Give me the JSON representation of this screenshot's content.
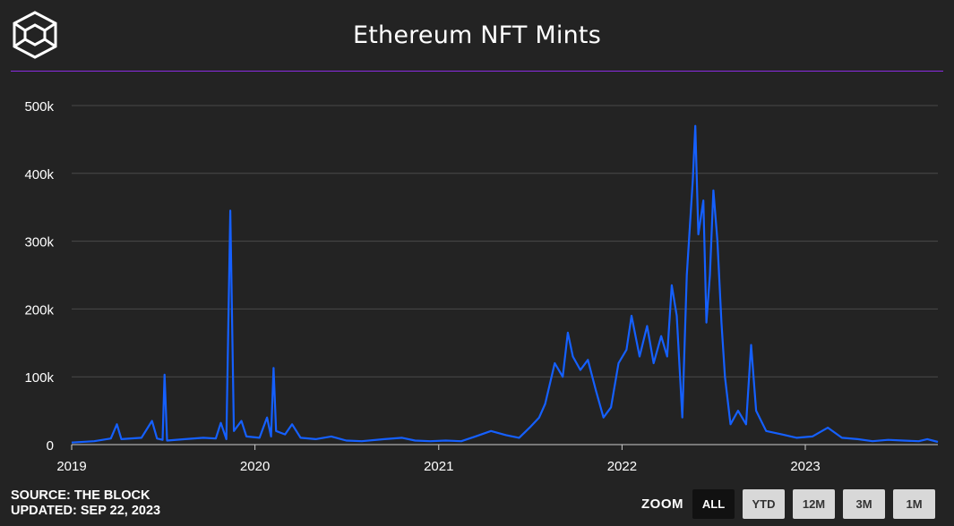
{
  "header": {
    "title": "Ethereum NFT Mints"
  },
  "footer": {
    "source": "SOURCE: THE BLOCK",
    "updated": "UPDATED: SEP 22, 2023"
  },
  "zoom": {
    "label": "ZOOM",
    "buttons": [
      "ALL",
      "YTD",
      "12M",
      "3M",
      "1M"
    ],
    "active": "ALL"
  },
  "colors": {
    "line": "#1560ff",
    "background": "#232323",
    "rule": "#8a2be2",
    "grid": "#4a4a4a"
  },
  "chart_data": {
    "type": "line",
    "title": "Ethereum NFT Mints",
    "xlabel": "",
    "ylabel": "",
    "xlim": [
      "2019-01-01",
      "2023-09-22"
    ],
    "ylim": [
      0,
      500000
    ],
    "x_ticks": [
      "2019",
      "2020",
      "2021",
      "2022",
      "2023"
    ],
    "y_ticks": [
      "0",
      "100k",
      "200k",
      "300k",
      "400k",
      "500k"
    ],
    "grid": true,
    "legend": "none",
    "series": [
      {
        "points": [
          [
            "2019-01-01",
            3000
          ],
          [
            "2019-02-15",
            5000
          ],
          [
            "2019-03-20",
            9000
          ],
          [
            "2019-04-01",
            30000
          ],
          [
            "2019-04-10",
            8000
          ],
          [
            "2019-05-20",
            10000
          ],
          [
            "2019-06-10",
            35000
          ],
          [
            "2019-06-20",
            9000
          ],
          [
            "2019-07-01",
            7000
          ],
          [
            "2019-07-05",
            103000
          ],
          [
            "2019-07-10",
            6000
          ],
          [
            "2019-08-15",
            8000
          ],
          [
            "2019-09-20",
            10000
          ],
          [
            "2019-10-15",
            9000
          ],
          [
            "2019-10-25",
            32000
          ],
          [
            "2019-11-05",
            8000
          ],
          [
            "2019-11-13",
            345000
          ],
          [
            "2019-11-20",
            20000
          ],
          [
            "2019-12-05",
            35000
          ],
          [
            "2019-12-15",
            12000
          ],
          [
            "2020-01-10",
            10000
          ],
          [
            "2020-01-25",
            40000
          ],
          [
            "2020-02-02",
            12000
          ],
          [
            "2020-02-07",
            113000
          ],
          [
            "2020-02-12",
            20000
          ],
          [
            "2020-03-01",
            15000
          ],
          [
            "2020-03-15",
            30000
          ],
          [
            "2020-04-01",
            10000
          ],
          [
            "2020-05-01",
            8000
          ],
          [
            "2020-06-01",
            12000
          ],
          [
            "2020-07-01",
            6000
          ],
          [
            "2020-08-01",
            5000
          ],
          [
            "2020-09-15",
            8000
          ],
          [
            "2020-10-20",
            10000
          ],
          [
            "2020-11-15",
            6000
          ],
          [
            "2020-12-15",
            5000
          ],
          [
            "2021-01-15",
            6000
          ],
          [
            "2021-02-15",
            5000
          ],
          [
            "2021-03-15",
            12000
          ],
          [
            "2021-04-15",
            20000
          ],
          [
            "2021-05-15",
            14000
          ],
          [
            "2021-06-10",
            10000
          ],
          [
            "2021-07-01",
            25000
          ],
          [
            "2021-07-20",
            40000
          ],
          [
            "2021-08-01",
            60000
          ],
          [
            "2021-08-20",
            120000
          ],
          [
            "2021-09-05",
            100000
          ],
          [
            "2021-09-15",
            165000
          ],
          [
            "2021-09-25",
            130000
          ],
          [
            "2021-10-10",
            110000
          ],
          [
            "2021-10-25",
            125000
          ],
          [
            "2021-11-10",
            80000
          ],
          [
            "2021-11-25",
            40000
          ],
          [
            "2021-12-10",
            55000
          ],
          [
            "2021-12-25",
            120000
          ],
          [
            "2022-01-10",
            140000
          ],
          [
            "2022-01-20",
            190000
          ],
          [
            "2022-02-05",
            130000
          ],
          [
            "2022-02-20",
            175000
          ],
          [
            "2022-03-05",
            120000
          ],
          [
            "2022-03-20",
            160000
          ],
          [
            "2022-04-01",
            130000
          ],
          [
            "2022-04-10",
            235000
          ],
          [
            "2022-04-20",
            190000
          ],
          [
            "2022-05-01",
            40000
          ],
          [
            "2022-05-10",
            250000
          ],
          [
            "2022-05-22",
            390000
          ],
          [
            "2022-05-27",
            470000
          ],
          [
            "2022-06-02",
            310000
          ],
          [
            "2022-06-12",
            360000
          ],
          [
            "2022-06-18",
            180000
          ],
          [
            "2022-06-25",
            250000
          ],
          [
            "2022-07-02",
            375000
          ],
          [
            "2022-07-10",
            300000
          ],
          [
            "2022-07-18",
            180000
          ],
          [
            "2022-07-25",
            100000
          ],
          [
            "2022-08-05",
            30000
          ],
          [
            "2022-08-20",
            50000
          ],
          [
            "2022-09-05",
            30000
          ],
          [
            "2022-09-15",
            147000
          ],
          [
            "2022-09-25",
            50000
          ],
          [
            "2022-10-15",
            20000
          ],
          [
            "2022-11-15",
            15000
          ],
          [
            "2022-12-15",
            10000
          ],
          [
            "2023-01-15",
            12000
          ],
          [
            "2023-02-15",
            25000
          ],
          [
            "2023-03-15",
            10000
          ],
          [
            "2023-04-15",
            8000
          ],
          [
            "2023-05-15",
            5000
          ],
          [
            "2023-06-15",
            7000
          ],
          [
            "2023-07-15",
            6000
          ],
          [
            "2023-08-15",
            5000
          ],
          [
            "2023-09-01",
            8000
          ],
          [
            "2023-09-22",
            4000
          ]
        ]
      }
    ]
  }
}
